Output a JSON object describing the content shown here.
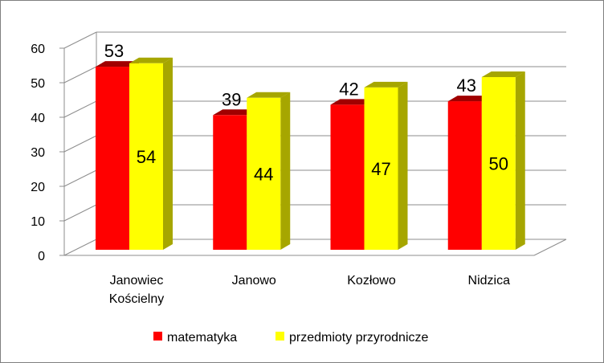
{
  "chart_data": {
    "type": "bar",
    "title": "",
    "xlabel": "",
    "ylabel": "",
    "ylim": [
      0,
      60
    ],
    "yticks": [
      0,
      10,
      20,
      30,
      40,
      50,
      60
    ],
    "grid": true,
    "legend_position": "bottom",
    "categories": [
      [
        "Janowiec",
        "Kościelny"
      ],
      [
        "Janowo"
      ],
      [
        "Kozłowo"
      ],
      [
        "Nidzica"
      ]
    ],
    "series": [
      {
        "name": "matematyka",
        "color": "#ff0000",
        "side_color": "#a00000",
        "values": [
          53,
          39,
          42,
          43
        ],
        "label_position": "top"
      },
      {
        "name": "przedmioty przyrodnicze",
        "color": "#ffff00",
        "side_color": "#a6a600",
        "values": [
          54,
          44,
          47,
          50
        ],
        "label_position": "inside"
      }
    ]
  }
}
